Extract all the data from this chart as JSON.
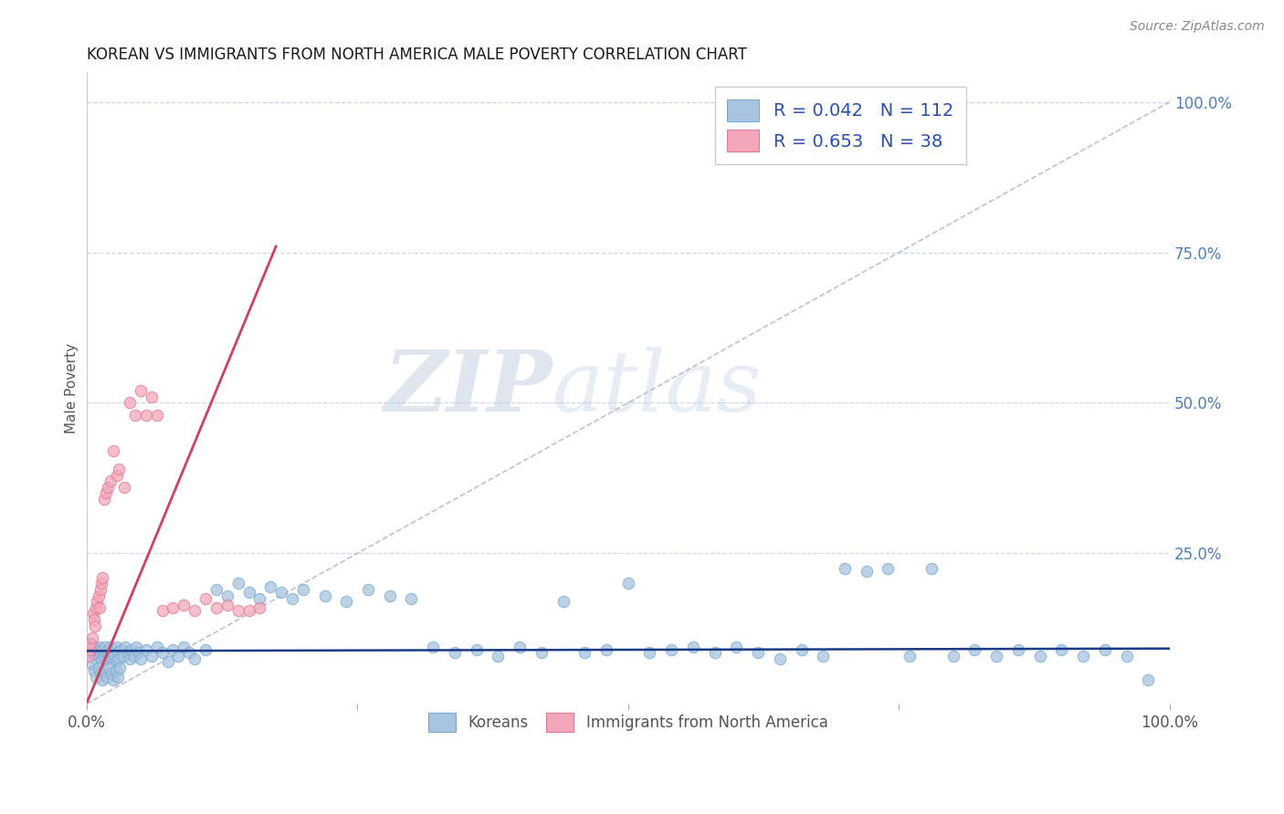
{
  "title": "KOREAN VS IMMIGRANTS FROM NORTH AMERICA MALE POVERTY CORRELATION CHART",
  "source": "Source: ZipAtlas.com",
  "ylabel": "Male Poverty",
  "watermark_zip": "ZIP",
  "watermark_atlas": "atlas",
  "legend": {
    "korean_R": "R = 0.042",
    "korean_N": "N = 112",
    "immigrant_R": "R = 0.653",
    "immigrant_N": "N = 38"
  },
  "korean_color": "#a8c4e0",
  "korean_edge_color": "#7aaace",
  "immigrant_color": "#f2a8b8",
  "immigrant_edge_color": "#e07898",
  "korean_line_color": "#1a3a8a",
  "immigrant_line_color": "#d04060",
  "diagonal_color": "#b0b8c8",
  "background_color": "#ffffff",
  "grid_color": "#c8d4e4",
  "legend_text_color": "#2850b0",
  "title_color": "#1a1a1a",
  "right_axis_color": "#4a80c0",
  "source_color": "#888888",
  "bottom_label_color": "#555555",
  "xlim": [
    0.0,
    1.0
  ],
  "ylim": [
    0.0,
    1.05
  ],
  "korean_scatter_x": [
    0.002,
    0.003,
    0.004,
    0.005,
    0.006,
    0.007,
    0.008,
    0.009,
    0.01,
    0.011,
    0.012,
    0.013,
    0.014,
    0.015,
    0.016,
    0.017,
    0.018,
    0.019,
    0.02,
    0.021,
    0.022,
    0.023,
    0.024,
    0.025,
    0.026,
    0.027,
    0.028,
    0.029,
    0.03,
    0.032,
    0.034,
    0.036,
    0.038,
    0.04,
    0.042,
    0.044,
    0.046,
    0.048,
    0.05,
    0.055,
    0.06,
    0.065,
    0.07,
    0.075,
    0.08,
    0.085,
    0.09,
    0.095,
    0.1,
    0.11,
    0.12,
    0.13,
    0.14,
    0.15,
    0.16,
    0.17,
    0.18,
    0.19,
    0.2,
    0.22,
    0.24,
    0.26,
    0.28,
    0.3,
    0.32,
    0.34,
    0.36,
    0.38,
    0.4,
    0.42,
    0.44,
    0.46,
    0.48,
    0.5,
    0.52,
    0.54,
    0.56,
    0.58,
    0.6,
    0.62,
    0.64,
    0.66,
    0.68,
    0.7,
    0.72,
    0.74,
    0.76,
    0.78,
    0.8,
    0.82,
    0.84,
    0.86,
    0.88,
    0.9,
    0.92,
    0.94,
    0.96,
    0.98,
    0.005,
    0.007,
    0.009,
    0.011,
    0.013,
    0.015,
    0.017,
    0.019,
    0.021,
    0.023,
    0.025,
    0.027,
    0.029,
    0.031
  ],
  "korean_scatter_y": [
    0.095,
    0.085,
    0.1,
    0.09,
    0.08,
    0.095,
    0.085,
    0.075,
    0.09,
    0.08,
    0.095,
    0.085,
    0.07,
    0.09,
    0.08,
    0.095,
    0.085,
    0.075,
    0.09,
    0.08,
    0.095,
    0.085,
    0.075,
    0.09,
    0.08,
    0.07,
    0.095,
    0.085,
    0.075,
    0.09,
    0.08,
    0.095,
    0.085,
    0.075,
    0.09,
    0.08,
    0.095,
    0.085,
    0.075,
    0.09,
    0.08,
    0.095,
    0.085,
    0.07,
    0.09,
    0.08,
    0.095,
    0.085,
    0.075,
    0.09,
    0.19,
    0.18,
    0.2,
    0.185,
    0.175,
    0.195,
    0.185,
    0.175,
    0.19,
    0.18,
    0.17,
    0.19,
    0.18,
    0.175,
    0.095,
    0.085,
    0.09,
    0.08,
    0.095,
    0.085,
    0.17,
    0.085,
    0.09,
    0.2,
    0.085,
    0.09,
    0.095,
    0.085,
    0.095,
    0.085,
    0.075,
    0.09,
    0.08,
    0.225,
    0.22,
    0.225,
    0.08,
    0.225,
    0.08,
    0.09,
    0.08,
    0.09,
    0.08,
    0.09,
    0.08,
    0.09,
    0.08,
    0.04,
    0.065,
    0.055,
    0.045,
    0.06,
    0.05,
    0.04,
    0.055,
    0.045,
    0.06,
    0.05,
    0.04,
    0.055,
    0.045,
    0.06
  ],
  "immigrant_scatter_x": [
    0.002,
    0.003,
    0.004,
    0.005,
    0.006,
    0.007,
    0.008,
    0.009,
    0.01,
    0.011,
    0.012,
    0.013,
    0.014,
    0.015,
    0.016,
    0.018,
    0.02,
    0.022,
    0.025,
    0.028,
    0.03,
    0.035,
    0.04,
    0.045,
    0.05,
    0.055,
    0.06,
    0.065,
    0.07,
    0.08,
    0.09,
    0.1,
    0.11,
    0.12,
    0.13,
    0.14,
    0.15,
    0.16
  ],
  "immigrant_scatter_y": [
    0.08,
    0.09,
    0.1,
    0.11,
    0.15,
    0.14,
    0.13,
    0.16,
    0.17,
    0.18,
    0.16,
    0.19,
    0.2,
    0.21,
    0.34,
    0.35,
    0.36,
    0.37,
    0.42,
    0.38,
    0.39,
    0.36,
    0.5,
    0.48,
    0.52,
    0.48,
    0.51,
    0.48,
    0.155,
    0.16,
    0.165,
    0.155,
    0.175,
    0.16,
    0.165,
    0.155,
    0.155,
    0.16
  ],
  "korean_line_x": [
    0.0,
    1.0
  ],
  "korean_line_y": [
    0.088,
    0.092
  ],
  "immigrant_line_x": [
    0.0,
    0.175
  ],
  "immigrant_line_y": [
    0.0,
    0.76
  ]
}
